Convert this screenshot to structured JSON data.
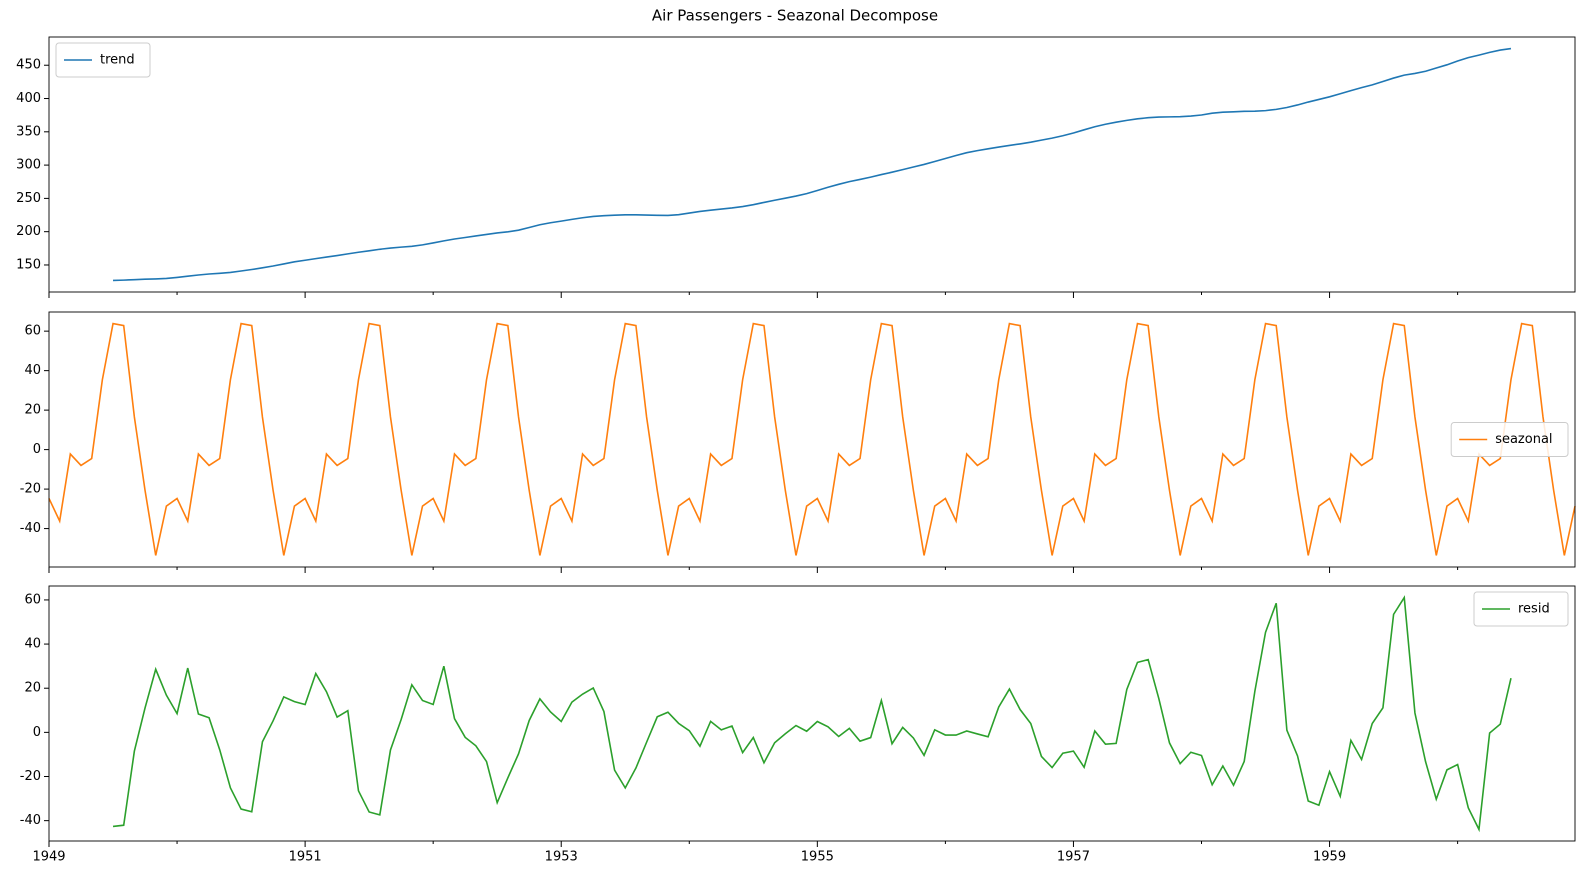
{
  "title": "Air Passengers - Seazonal Decompose",
  "x": [
    "1949-01",
    "1949-02",
    "1949-03",
    "1949-04",
    "1949-05",
    "1949-06",
    "1949-07",
    "1949-08",
    "1949-09",
    "1949-10",
    "1949-11",
    "1949-12",
    "1950-01",
    "1950-02",
    "1950-03",
    "1950-04",
    "1950-05",
    "1950-06",
    "1950-07",
    "1950-08",
    "1950-09",
    "1950-10",
    "1950-11",
    "1950-12",
    "1951-01",
    "1951-02",
    "1951-03",
    "1951-04",
    "1951-05",
    "1951-06",
    "1951-07",
    "1951-08",
    "1951-09",
    "1951-10",
    "1951-11",
    "1951-12",
    "1952-01",
    "1952-02",
    "1952-03",
    "1952-04",
    "1952-05",
    "1952-06",
    "1952-07",
    "1952-08",
    "1952-09",
    "1952-10",
    "1952-11",
    "1952-12",
    "1953-01",
    "1953-02",
    "1953-03",
    "1953-04",
    "1953-05",
    "1953-06",
    "1953-07",
    "1953-08",
    "1953-09",
    "1953-10",
    "1953-11",
    "1953-12",
    "1954-01",
    "1954-02",
    "1954-03",
    "1954-04",
    "1954-05",
    "1954-06",
    "1954-07",
    "1954-08",
    "1954-09",
    "1954-10",
    "1954-11",
    "1954-12",
    "1955-01",
    "1955-02",
    "1955-03",
    "1955-04",
    "1955-05",
    "1955-06",
    "1955-07",
    "1955-08",
    "1955-09",
    "1955-10",
    "1955-11",
    "1955-12",
    "1956-01",
    "1956-02",
    "1956-03",
    "1956-04",
    "1956-05",
    "1956-06",
    "1956-07",
    "1956-08",
    "1956-09",
    "1956-10",
    "1956-11",
    "1956-12",
    "1957-01",
    "1957-02",
    "1957-03",
    "1957-04",
    "1957-05",
    "1957-06",
    "1957-07",
    "1957-08",
    "1957-09",
    "1957-10",
    "1957-11",
    "1957-12",
    "1958-01",
    "1958-02",
    "1958-03",
    "1958-04",
    "1958-05",
    "1958-06",
    "1958-07",
    "1958-08",
    "1958-09",
    "1958-10",
    "1958-11",
    "1958-12",
    "1959-01",
    "1959-02",
    "1959-03",
    "1959-04",
    "1959-05",
    "1959-06",
    "1959-07",
    "1959-08",
    "1959-09",
    "1959-10",
    "1959-11",
    "1959-12",
    "1960-01",
    "1960-02",
    "1960-03",
    "1960-04",
    "1960-05",
    "1960-06",
    "1960-07",
    "1960-08",
    "1960-09",
    "1960-10",
    "1960-11",
    "1960-12"
  ],
  "xlim": [
    "1949-01",
    "1960-12"
  ],
  "xticks": [
    {
      "value": "1949-01",
      "label": "1949"
    },
    {
      "value": "1951-01",
      "label": "1951"
    },
    {
      "value": "1953-01",
      "label": "1953"
    },
    {
      "value": "1955-01",
      "label": "1955"
    },
    {
      "value": "1957-01",
      "label": "1957"
    },
    {
      "value": "1959-01",
      "label": "1959"
    }
  ],
  "xminorticks": [
    "1950-01",
    "1952-01",
    "1954-01",
    "1956-01",
    "1958-01",
    "1960-01"
  ],
  "chart_data": [
    {
      "type": "line",
      "legend": "upper left",
      "ylim": [
        109.4,
        492.4
      ],
      "yticks": [
        150,
        200,
        250,
        300,
        350,
        400,
        450
      ],
      "series": [
        {
          "name": "trend",
          "color": "#1f77b4",
          "values": [
            null,
            null,
            null,
            null,
            null,
            null,
            126.79,
            127.25,
            127.96,
            128.58,
            129.0,
            129.75,
            131.25,
            133.08,
            134.92,
            136.42,
            137.42,
            138.75,
            140.92,
            143.17,
            145.71,
            148.42,
            151.54,
            154.71,
            157.12,
            159.54,
            161.83,
            164.12,
            166.67,
            169.08,
            171.25,
            173.58,
            175.46,
            176.83,
            178.04,
            180.17,
            183.12,
            186.21,
            189.04,
            191.29,
            193.58,
            195.83,
            198.04,
            199.75,
            202.21,
            206.25,
            210.42,
            213.38,
            215.83,
            218.5,
            220.92,
            222.92,
            224.08,
            224.71,
            225.33,
            225.33,
            224.96,
            224.58,
            224.46,
            225.54,
            228.0,
            230.46,
            232.25,
            233.92,
            235.62,
            237.75,
            240.5,
            243.96,
            247.17,
            250.25,
            253.5,
            257.12,
            261.83,
            266.67,
            271.12,
            275.21,
            278.5,
            281.96,
            285.75,
            289.33,
            293.25,
            297.17,
            301.0,
            305.46,
            309.96,
            314.42,
            318.62,
            321.75,
            324.5,
            327.08,
            329.54,
            331.83,
            334.46,
            337.54,
            340.54,
            344.08,
            348.25,
            353.0,
            357.62,
            361.38,
            364.5,
            367.17,
            369.46,
            371.21,
            372.17,
            372.42,
            372.75,
            373.62,
            375.25,
            377.92,
            379.5,
            380.0,
            380.71,
            380.96,
            381.83,
            383.67,
            386.5,
            390.33,
            394.71,
            398.62,
            402.54,
            407.17,
            411.88,
            416.33,
            420.5,
            425.5,
            430.71,
            435.12,
            437.71,
            440.96,
            445.83,
            450.62,
            456.33,
            461.38,
            465.21,
            469.33,
            472.75,
            475.04,
            null,
            null,
            null,
            null,
            null,
            null
          ]
        }
      ]
    },
    {
      "type": "line",
      "legend": "center right",
      "ylim": [
        -59.46,
        69.7
      ],
      "yticks": [
        -40,
        -20,
        0,
        20,
        40,
        60
      ],
      "series": [
        {
          "name": "seazonal",
          "color": "#ff7f0e",
          "values": [
            -24.75,
            -36.19,
            -2.24,
            -8.04,
            -4.51,
            35.4,
            63.83,
            62.82,
            16.52,
            -20.64,
            -53.59,
            -28.62,
            -24.75,
            -36.19,
            -2.24,
            -8.04,
            -4.51,
            35.4,
            63.83,
            62.82,
            16.52,
            -20.64,
            -53.59,
            -28.62,
            -24.75,
            -36.19,
            -2.24,
            -8.04,
            -4.51,
            35.4,
            63.83,
            62.82,
            16.52,
            -20.64,
            -53.59,
            -28.62,
            -24.75,
            -36.19,
            -2.24,
            -8.04,
            -4.51,
            35.4,
            63.83,
            62.82,
            16.52,
            -20.64,
            -53.59,
            -28.62,
            -24.75,
            -36.19,
            -2.24,
            -8.04,
            -4.51,
            35.4,
            63.83,
            62.82,
            16.52,
            -20.64,
            -53.59,
            -28.62,
            -24.75,
            -36.19,
            -2.24,
            -8.04,
            -4.51,
            35.4,
            63.83,
            62.82,
            16.52,
            -20.64,
            -53.59,
            -28.62,
            -24.75,
            -36.19,
            -2.24,
            -8.04,
            -4.51,
            35.4,
            63.83,
            62.82,
            16.52,
            -20.64,
            -53.59,
            -28.62,
            -24.75,
            -36.19,
            -2.24,
            -8.04,
            -4.51,
            35.4,
            63.83,
            62.82,
            16.52,
            -20.64,
            -53.59,
            -28.62,
            -24.75,
            -36.19,
            -2.24,
            -8.04,
            -4.51,
            35.4,
            63.83,
            62.82,
            16.52,
            -20.64,
            -53.59,
            -28.62,
            -24.75,
            -36.19,
            -2.24,
            -8.04,
            -4.51,
            35.4,
            63.83,
            62.82,
            16.52,
            -20.64,
            -53.59,
            -28.62,
            -24.75,
            -36.19,
            -2.24,
            -8.04,
            -4.51,
            35.4,
            63.83,
            62.82,
            16.52,
            -20.64,
            -53.59,
            -28.62,
            -24.75,
            -36.19,
            -2.24,
            -8.04,
            -4.51,
            35.4,
            63.83,
            62.82,
            16.52,
            -20.64,
            -53.59,
            -28.62
          ]
        }
      ]
    },
    {
      "type": "line",
      "legend": "upper right",
      "ylim": [
        -49.22,
        66.31
      ],
      "yticks": [
        -40,
        -20,
        0,
        20,
        40,
        60
      ],
      "series": [
        {
          "name": "resid",
          "color": "#2ca02c",
          "values": [
            null,
            null,
            null,
            null,
            null,
            null,
            -42.62,
            -42.07,
            -8.48,
            11.06,
            28.59,
            16.87,
            8.5,
            29.11,
            8.32,
            6.62,
            -7.91,
            -25.15,
            -34.75,
            -35.99,
            -4.23,
            5.22,
            16.05,
            13.91,
            12.63,
            26.65,
            18.41,
            6.92,
            9.84,
            -26.48,
            -36.08,
            -37.4,
            -7.98,
            5.81,
            21.55,
            14.45,
            12.63,
            29.98,
            6.2,
            -2.25,
            -6.07,
            -13.23,
            -31.87,
            -20.57,
            -9.73,
            5.39,
            15.17,
            9.24,
            4.92,
            13.69,
            17.32,
            20.12,
            9.43,
            -17.11,
            -25.16,
            -16.15,
            -4.48,
            7.06,
            9.13,
            4.08,
            0.75,
            -6.27,
            4.99,
            1.12,
            2.89,
            -9.15,
            -2.33,
            -13.78,
            -4.69,
            -0.61,
            3.09,
            0.5,
            4.92,
            2.52,
            -1.88,
            1.83,
            -3.99,
            -2.36,
            14.42,
            -5.15,
            2.23,
            -2.53,
            -10.41,
            1.16,
            -1.21,
            -1.23,
            0.62,
            -0.71,
            -1.99,
            11.52,
            19.63,
            10.35,
            4.02,
            -10.9,
            -15.95,
            -9.46,
            -8.5,
            -15.81,
            0.62,
            -5.34,
            -4.99,
            19.43,
            31.71,
            32.97,
            15.31,
            -4.78,
            -14.16,
            -9.0,
            -10.5,
            -23.73,
            -15.26,
            -23.96,
            -13.2,
            18.64,
            45.34,
            58.51,
            0.98,
            -10.69,
            -31.12,
            -33.0,
            -17.79,
            -28.98,
            -3.64,
            -12.29,
            4.01,
            11.1,
            53.46,
            61.06,
            8.77,
            -13.32,
            -30.24,
            -17.0,
            -14.58,
            -34.19,
            -43.97,
            -0.29,
            3.76,
            24.56,
            null,
            null,
            null,
            null,
            null,
            null
          ]
        }
      ]
    }
  ]
}
